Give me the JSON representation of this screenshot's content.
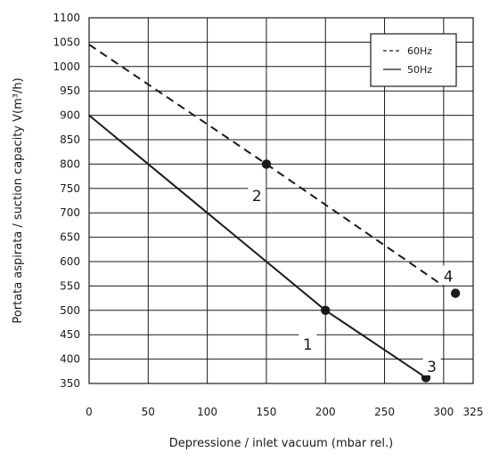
{
  "chart_data": {
    "type": "line",
    "xlabel": "Depressione / inlet vacuum (mbar rel.)",
    "ylabel": "Portata aspirata / suction capacity V(m³/h)",
    "xlim": [
      0,
      325
    ],
    "ylim": [
      350,
      1100
    ],
    "x_ticks": [
      "0",
      "50",
      "100",
      "150",
      "200",
      "250",
      "300",
      "325"
    ],
    "y_ticks": [
      "350",
      "400",
      "450",
      "500",
      "550",
      "600",
      "650",
      "700",
      "750",
      "800",
      "850",
      "900",
      "950",
      "1000",
      "1050",
      "1100"
    ],
    "grid": true,
    "legend_position": "top-right",
    "series": [
      {
        "name": "60Hz",
        "style": "dashed",
        "color": "#1a1a1a",
        "points": [
          [
            0,
            1045
          ],
          [
            150,
            800
          ],
          [
            300,
            550
          ]
        ]
      },
      {
        "name": "50Hz",
        "style": "solid",
        "color": "#1a1a1a",
        "points": [
          [
            0,
            900
          ],
          [
            100,
            700
          ],
          [
            150,
            600
          ],
          [
            200,
            500
          ],
          [
            285,
            362
          ]
        ]
      }
    ],
    "markers": [
      {
        "x": 150,
        "y": 800
      },
      {
        "x": 200,
        "y": 500
      },
      {
        "x": 285,
        "y": 362
      },
      {
        "x": 310,
        "y": 535
      }
    ],
    "annotations": [
      {
        "text": "1",
        "x": 185,
        "y": 430
      },
      {
        "text": "2",
        "x": 142,
        "y": 735
      },
      {
        "text": "3",
        "x": 290,
        "y": 385
      },
      {
        "text": "4",
        "x": 304,
        "y": 570
      }
    ]
  }
}
